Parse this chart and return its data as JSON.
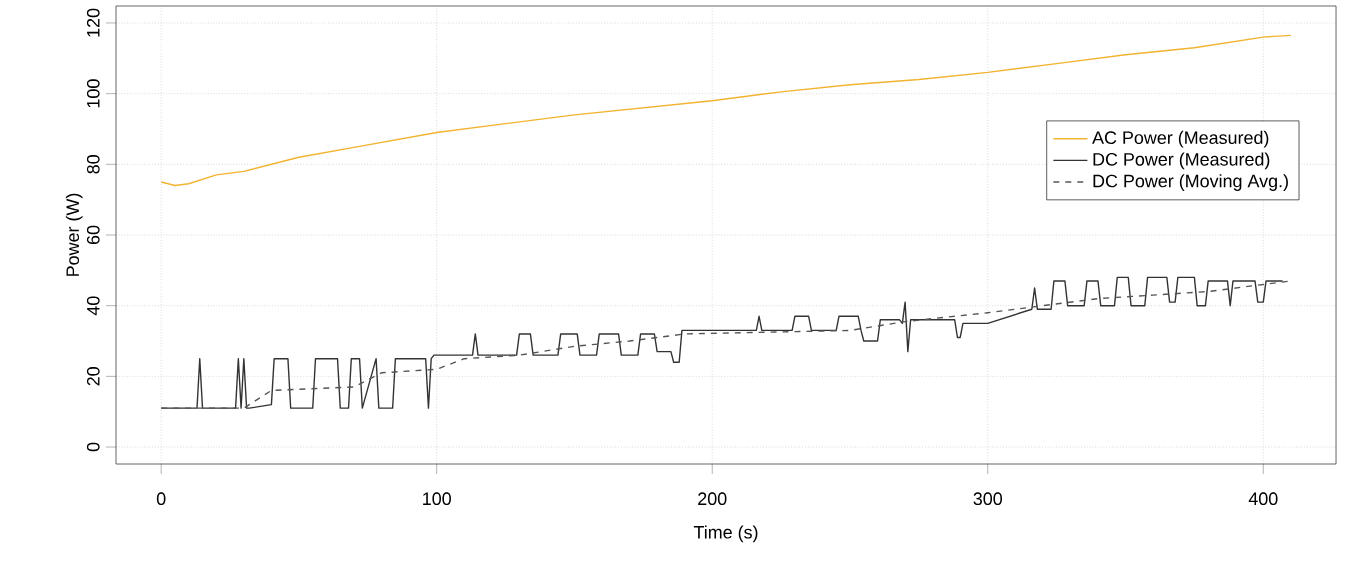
{
  "chart_data": {
    "type": "line",
    "xlabel": "Time (s)",
    "ylabel": "Power (W)",
    "xlim": [
      -16.4,
      426.4
    ],
    "ylim": [
      -4.8,
      124.8
    ],
    "xticks": [
      0,
      100,
      200,
      300,
      400
    ],
    "yticks": [
      0,
      20,
      40,
      60,
      80,
      100,
      120
    ],
    "grid": true,
    "legend": "right",
    "series": [
      {
        "name": "AC Power (Measured)",
        "color": "#f2b330",
        "line_style": "solid",
        "x": [
          0,
          5,
          10,
          20,
          30,
          50,
          75,
          100,
          125,
          150,
          175,
          200,
          225,
          250,
          275,
          300,
          325,
          350,
          375,
          400,
          410
        ],
        "values": [
          75,
          74,
          74.5,
          77,
          78,
          82,
          85.5,
          89,
          91.5,
          94,
          96,
          98,
          100.5,
          102.5,
          104,
          106,
          108.5,
          111,
          113,
          116,
          116.5
        ]
      },
      {
        "name": "DC Power (Measured)",
        "color": "#333333",
        "line_style": "solid",
        "x": [
          0,
          13,
          14,
          15,
          27,
          28,
          29,
          30,
          31,
          32,
          40,
          41,
          46,
          47,
          55,
          56,
          64,
          65,
          68,
          69,
          72,
          73,
          78,
          79,
          84,
          85,
          96,
          97,
          98,
          99,
          100,
          113,
          114,
          115,
          129,
          130,
          134,
          135,
          144,
          145,
          151,
          152,
          158,
          159,
          166,
          167,
          173,
          174,
          179,
          180,
          185,
          186,
          188,
          189,
          216,
          217,
          218,
          229,
          230,
          235,
          236,
          245,
          246,
          253,
          254,
          255,
          260,
          261,
          268,
          269,
          270,
          271,
          272,
          273,
          288,
          289,
          290,
          291,
          300,
          316,
          317,
          318,
          323,
          324,
          328,
          329,
          335,
          336,
          340,
          341,
          346,
          347,
          351,
          352,
          357,
          358,
          365,
          366,
          368,
          369,
          375,
          376,
          379,
          380,
          387,
          388,
          389,
          390,
          397,
          398,
          400,
          401,
          407
        ],
        "values": [
          11,
          11,
          25,
          11,
          11,
          25,
          11,
          25,
          11,
          11,
          12,
          25,
          25,
          11,
          11,
          25,
          25,
          11,
          11,
          25,
          25,
          11,
          25,
          11,
          11,
          25,
          25,
          11,
          25,
          26,
          26,
          26,
          32,
          26,
          26,
          32,
          32,
          26,
          26,
          32,
          32,
          26,
          26,
          32,
          32,
          26,
          26,
          32,
          32,
          27,
          27,
          24,
          24,
          33,
          33,
          37,
          33,
          33,
          37,
          37,
          33,
          33,
          37,
          37,
          33,
          30,
          30,
          36,
          36,
          35,
          41,
          27,
          36,
          36,
          36,
          31,
          31,
          35,
          35,
          39,
          45,
          39,
          39,
          47,
          47,
          40,
          40,
          47,
          47,
          40,
          40,
          48,
          48,
          40,
          40,
          48,
          48,
          41,
          41,
          48,
          48,
          40,
          40,
          47,
          47,
          40,
          47,
          47,
          47,
          41,
          41,
          47,
          47
        ]
      },
      {
        "name": "DC Power (Moving Avg.)",
        "color": "#555555",
        "line_style": "dashed",
        "x": [
          0,
          30,
          40,
          70,
          80,
          100,
          110,
          130,
          150,
          170,
          190,
          250,
          270,
          300,
          320,
          340,
          360,
          380,
          400,
          410
        ],
        "values": [
          11,
          11,
          16,
          17,
          21,
          22,
          25,
          26,
          28.5,
          30,
          32,
          33,
          35.5,
          38,
          40,
          42,
          43,
          44,
          46,
          47
        ]
      }
    ]
  }
}
